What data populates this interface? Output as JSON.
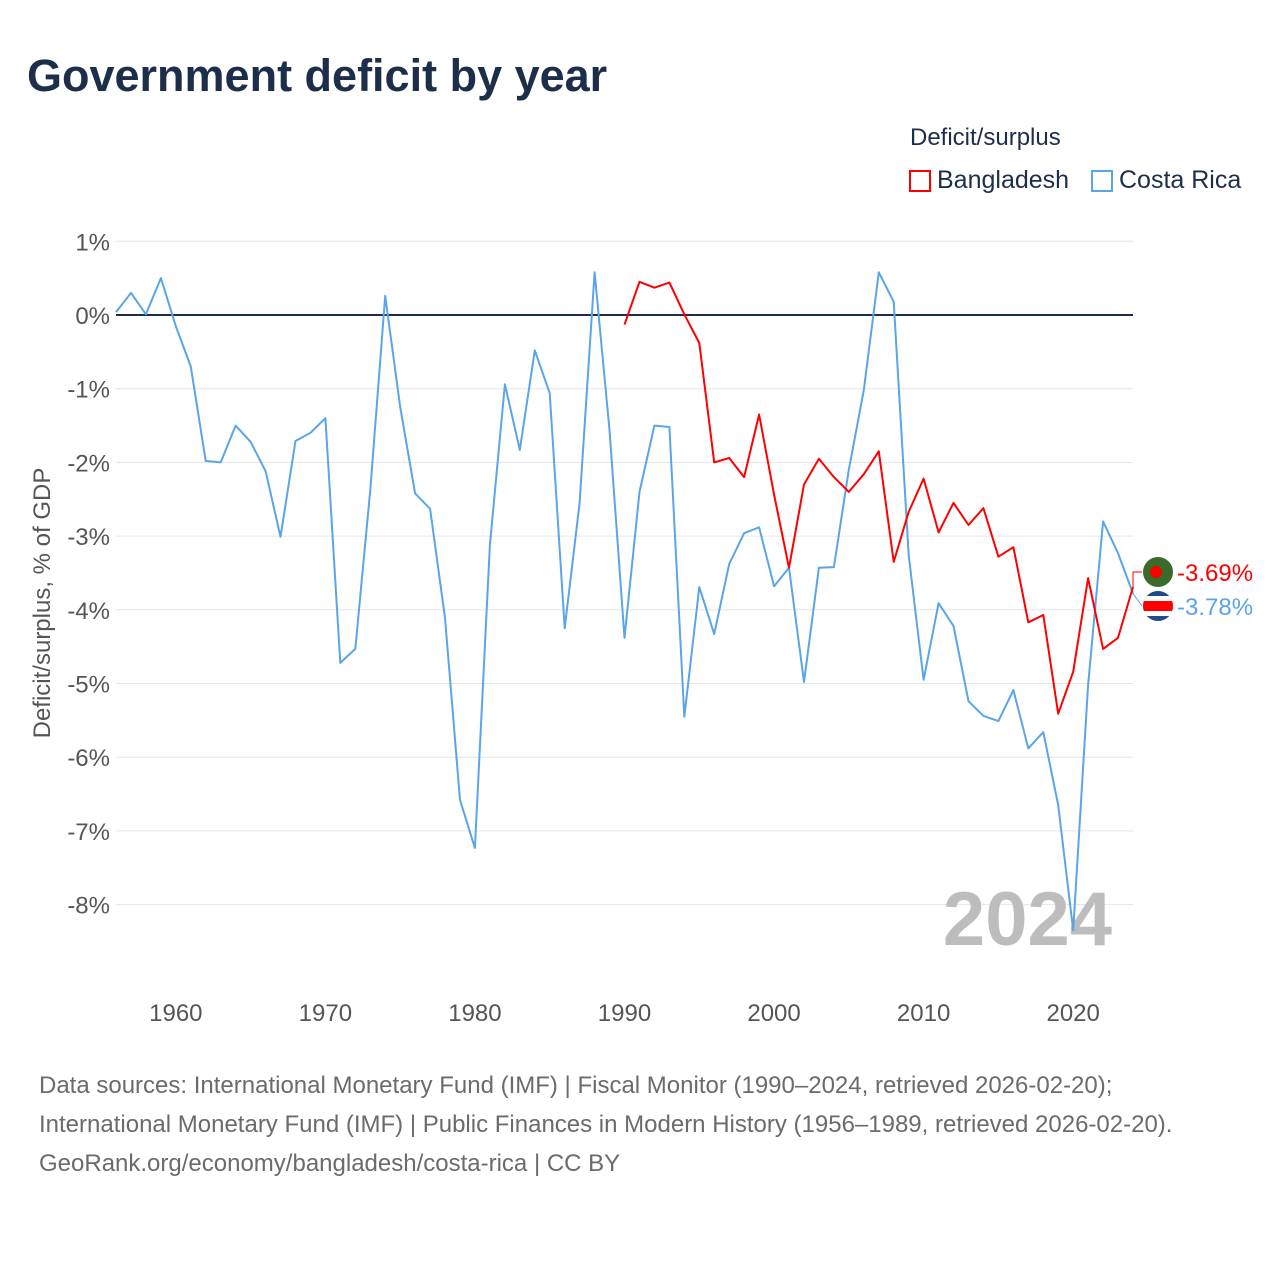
{
  "title": "Government deficit by year",
  "legend": {
    "title": "Deficit/surplus",
    "items": [
      {
        "label": "Bangladesh",
        "color": "#ff0000"
      },
      {
        "label": "Costa Rica",
        "color": "#5aa5e8"
      }
    ]
  },
  "year_watermark": "2024",
  "footer": {
    "sources": "Data sources: International Monetary Fund (IMF) | Fiscal Monitor (1990–2024, retrieved 2026-02-20); International Monetary Fund (IMF) | Public Finances in Modern History (1956–1989, retrieved 2026-02-20).",
    "credit": "GeoRank.org/economy/bangladesh/costa-rica | CC BY"
  },
  "chart_data": {
    "type": "line",
    "title": "Government deficit by year",
    "xlabel": "",
    "ylabel": "Deficit/surplus, % of GDP",
    "xlim": [
      1956,
      2024
    ],
    "ylim": [
      -9,
      1
    ],
    "x_ticks": [
      "1960",
      "1970",
      "1980",
      "1990",
      "2000",
      "2010",
      "2020"
    ],
    "y_ticks": [
      {
        "value": 1,
        "label": "1%"
      },
      {
        "value": 0,
        "label": "0%"
      },
      {
        "value": -1,
        "label": "-1%"
      },
      {
        "value": -2,
        "label": "-2%"
      },
      {
        "value": -3,
        "label": "-3%"
      },
      {
        "value": -4,
        "label": "-4%"
      },
      {
        "value": -5,
        "label": "-5%"
      },
      {
        "value": -6,
        "label": "-6%"
      },
      {
        "value": -7,
        "label": "-7%"
      },
      {
        "value": -8,
        "label": "-8%"
      }
    ],
    "grid": true,
    "legend_position": "top-right",
    "series": [
      {
        "name": "Bangladesh",
        "color": "#ff0000",
        "end_label": "-3.69%",
        "start_year": 1990,
        "values": [
          -0.13,
          0.45,
          0.37,
          0.44,
          0.01,
          -0.38,
          -2.0,
          -1.94,
          -2.2,
          -1.35,
          -2.44,
          -3.43,
          -2.3,
          -1.95,
          -2.2,
          -2.4,
          -2.16,
          -1.85,
          -3.35,
          -2.67,
          -2.22,
          -2.95,
          -2.55,
          -2.85,
          -2.62,
          -3.28,
          -3.15,
          -4.17,
          -4.07,
          -5.41,
          -4.84,
          -3.57,
          -4.53,
          -4.38,
          -3.69
        ]
      },
      {
        "name": "Costa Rica",
        "color": "#5aa5e8",
        "end_label": "-3.78%",
        "start_year": 1956,
        "values": [
          0.04,
          0.3,
          0.01,
          0.5,
          -0.15,
          -0.7,
          -1.98,
          -2.0,
          -1.5,
          -1.72,
          -2.12,
          -3.01,
          -1.71,
          -1.6,
          -1.4,
          -4.72,
          -4.53,
          -2.37,
          0.26,
          -1.25,
          -2.42,
          -2.63,
          -4.11,
          -6.58,
          -7.23,
          -3.12,
          -0.94,
          -1.83,
          -0.48,
          -1.06,
          -4.25,
          -2.55,
          0.58,
          -1.56,
          -4.38,
          -2.4,
          -1.5,
          -1.52,
          -5.45,
          -3.69,
          -4.33,
          -3.38,
          -2.96,
          -2.88,
          -3.68,
          -3.43,
          -4.98,
          -3.43,
          -3.42,
          -2.1,
          -1.02,
          0.58,
          0.18,
          -3.26,
          -4.95,
          -3.91,
          -4.22,
          -5.24,
          -5.44,
          -5.51,
          -5.09,
          -5.88,
          -5.66,
          -6.65,
          -8.35,
          -5.02,
          -2.8,
          -3.23,
          -3.78
        ]
      }
    ]
  }
}
